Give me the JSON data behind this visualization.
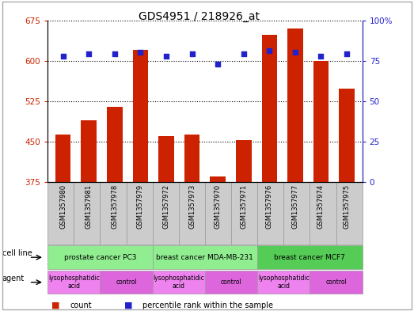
{
  "title": "GDS4951 / 218926_at",
  "samples": [
    "GSM1357980",
    "GSM1357981",
    "GSM1357978",
    "GSM1357979",
    "GSM1357972",
    "GSM1357973",
    "GSM1357970",
    "GSM1357971",
    "GSM1357976",
    "GSM1357977",
    "GSM1357974",
    "GSM1357975"
  ],
  "counts": [
    463,
    490,
    515,
    620,
    460,
    463,
    385,
    453,
    648,
    660,
    600,
    548
  ],
  "percentiles": [
    78,
    79,
    79,
    80,
    78,
    79,
    73,
    79,
    81,
    80,
    78,
    79
  ],
  "ylim_left": [
    375,
    675
  ],
  "ylim_right": [
    0,
    100
  ],
  "yticks_left": [
    375,
    450,
    525,
    600,
    675
  ],
  "yticks_right": [
    0,
    25,
    50,
    75,
    100
  ],
  "cell_lines": [
    {
      "label": "prostate cancer PC3",
      "start": 0,
      "end": 4,
      "color": "#90ee90"
    },
    {
      "label": "breast cancer MDA-MB-231",
      "start": 4,
      "end": 8,
      "color": "#90ee90"
    },
    {
      "label": "breast cancer MCF7",
      "start": 8,
      "end": 12,
      "color": "#55cc55"
    }
  ],
  "agents": [
    {
      "label": "lysophosphatidic\nacid",
      "start": 0,
      "end": 2,
      "color": "#ee82ee"
    },
    {
      "label": "control",
      "start": 2,
      "end": 4,
      "color": "#dd66dd"
    },
    {
      "label": "lysophosphatidic\nacid",
      "start": 4,
      "end": 6,
      "color": "#ee82ee"
    },
    {
      "label": "control",
      "start": 6,
      "end": 8,
      "color": "#dd66dd"
    },
    {
      "label": "lysophosphatidic\nacid",
      "start": 8,
      "end": 10,
      "color": "#ee82ee"
    },
    {
      "label": "control",
      "start": 10,
      "end": 12,
      "color": "#dd66dd"
    }
  ],
  "bar_color": "#cc2200",
  "dot_color": "#2222cc",
  "grid_color": "#000000",
  "background_color": "#ffffff",
  "sample_bg_color": "#cccccc",
  "sample_border_color": "#999999"
}
